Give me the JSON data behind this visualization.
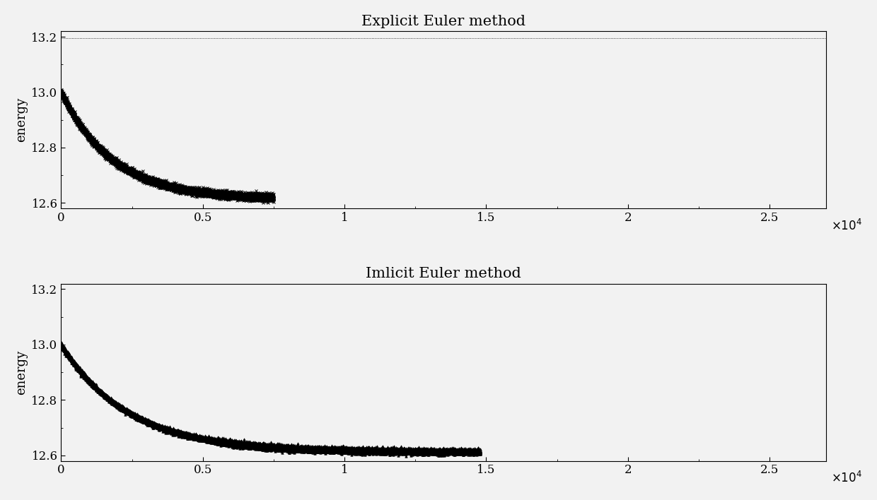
{
  "title1": "Explicit Euler method",
  "title2": "Imlicit Euler method",
  "ylabel": "energy",
  "xlim": [
    0,
    27000
  ],
  "ylim": [
    12.58,
    13.22
  ],
  "yticks": [
    12.6,
    12.8,
    13.0,
    13.2
  ],
  "xticks": [
    0,
    5000,
    10000,
    15000,
    20000,
    25000
  ],
  "xticklabels": [
    "0",
    "0.5",
    "1",
    "1.5",
    "2",
    "2.5"
  ],
  "hline_value": 13.195,
  "energy_start": 13.0,
  "energy_end1": 12.613,
  "energy_end2": 12.613,
  "n_points1": 7500,
  "n_points2": 14800,
  "decay_rate1": 0.00055,
  "decay_rate2": 0.00042,
  "osc_start": 5500,
  "osc_period": 42,
  "osc_amp_base": 0.012,
  "marker_color": "#000000",
  "bg_color": "#f0f0f0",
  "title_fontsize": 15,
  "label_fontsize": 13,
  "tick_fontsize": 12
}
